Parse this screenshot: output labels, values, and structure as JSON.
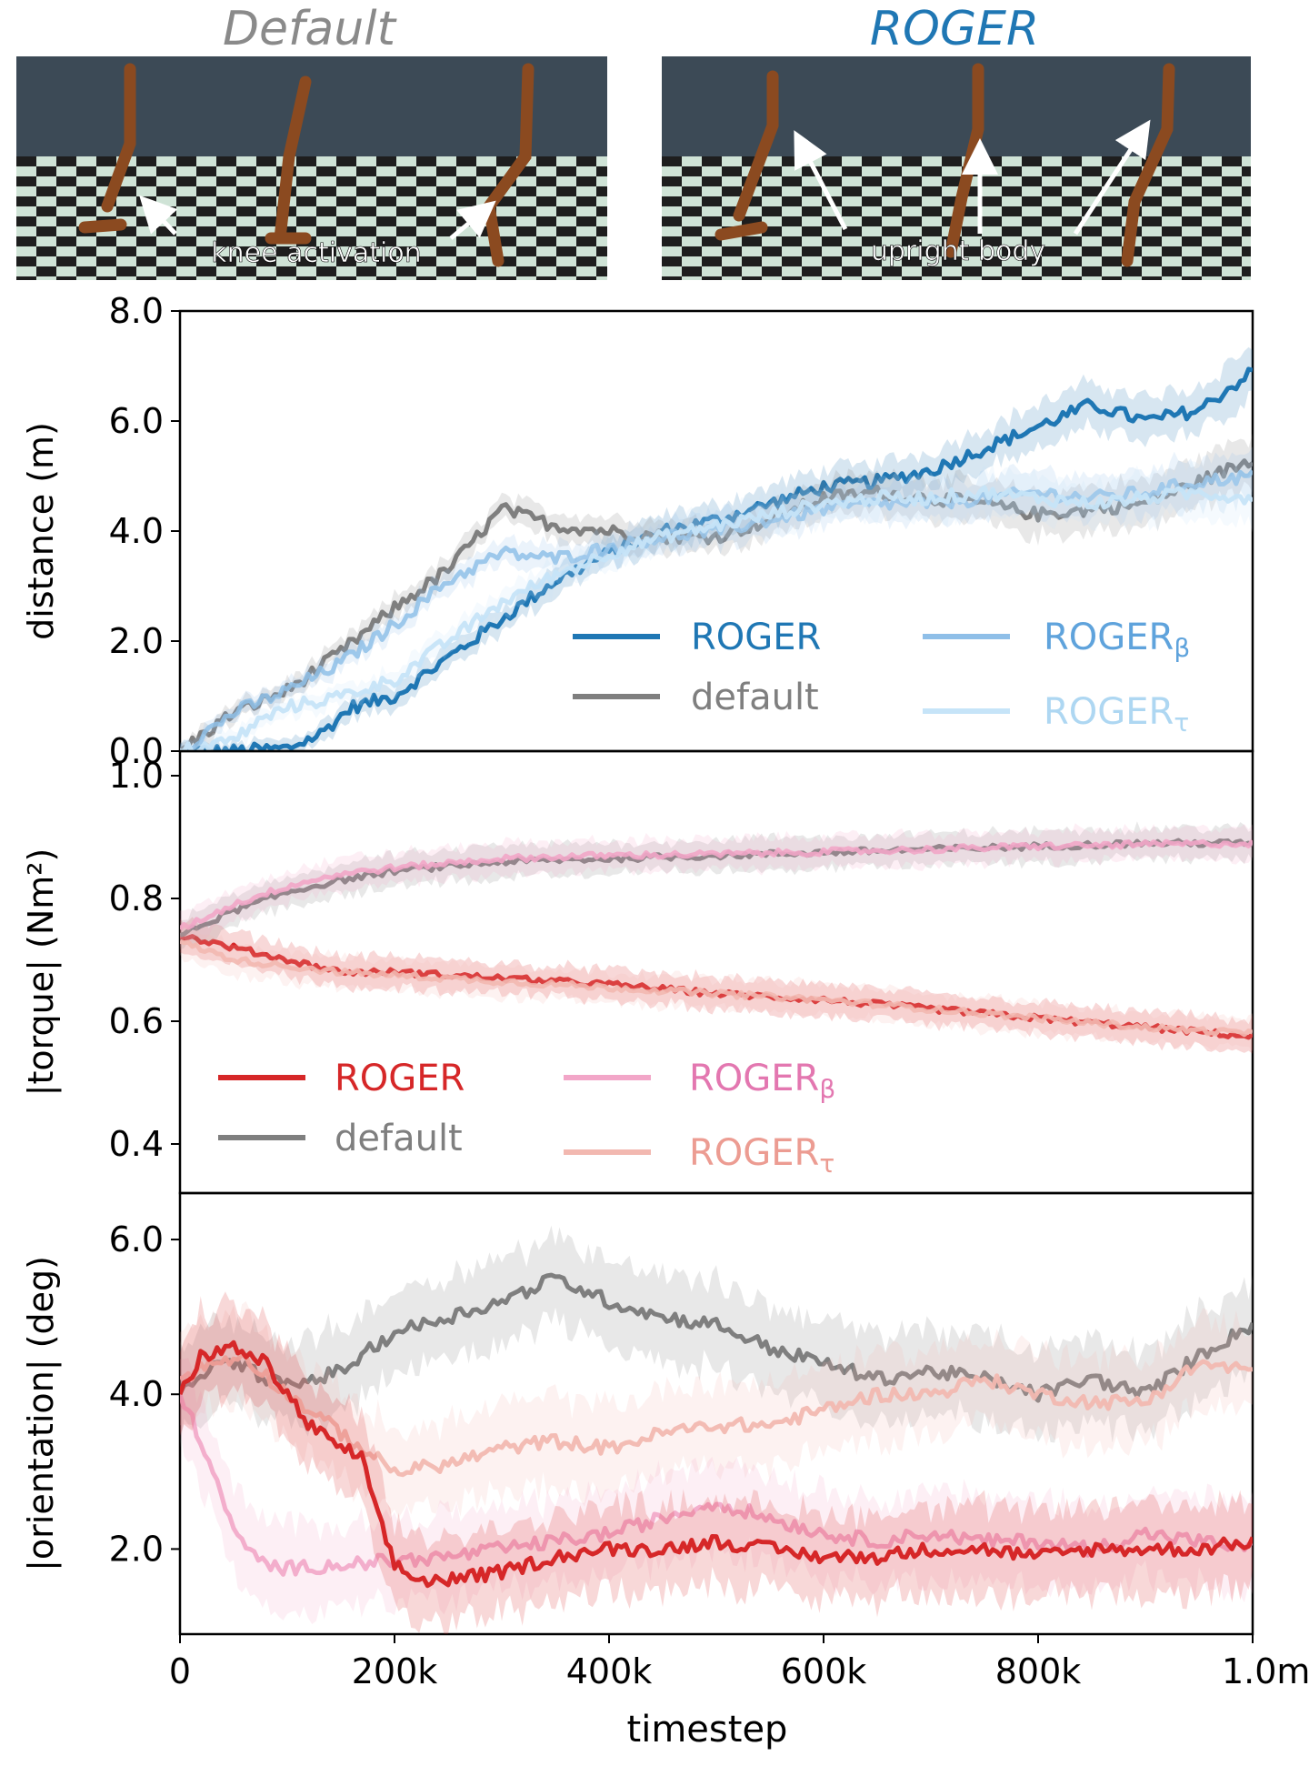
{
  "panels": {
    "default": {
      "title": "Default",
      "annotation": "knee activation"
    },
    "roger": {
      "title": "ROGER",
      "annotation": "upright body"
    }
  },
  "colors": {
    "roger_blue": "#1f77b4",
    "roger_beta_blue": "#8fbfe8",
    "roger_tau_blue": "#c6e4f8",
    "default_gray": "#7f7f7f",
    "roger_red": "#d62728",
    "roger_beta_pink": "#f2a6c8",
    "roger_tau_salmon": "#f2b8b0",
    "sky": "#3c4a56",
    "leg": "#8b4a20"
  },
  "chart_data": [
    {
      "type": "line",
      "id": "distance",
      "ylabel": "distance (m)",
      "ylim": [
        0.0,
        8.0
      ],
      "yticks": [
        "0.0",
        "2.0",
        "4.0",
        "6.0",
        "8.0"
      ],
      "xlim": [
        0,
        1000000
      ],
      "legend": {
        "placement": "lower-right",
        "columns": 2
      },
      "series": [
        {
          "name": "ROGER",
          "color": "#1f77b4",
          "opacity": 1.0,
          "x": [
            0,
            50000,
            100000,
            130000,
            160000,
            200000,
            250000,
            300000,
            350000,
            400000,
            450000,
            500000,
            550000,
            600000,
            650000,
            700000,
            750000,
            800000,
            850000,
            900000,
            950000,
            1000000
          ],
          "y": [
            0.0,
            0.0,
            0.05,
            0.3,
            0.8,
            1.0,
            1.7,
            2.4,
            3.1,
            3.6,
            4.0,
            4.2,
            4.5,
            4.8,
            4.9,
            5.1,
            5.5,
            5.9,
            6.3,
            6.0,
            6.2,
            6.9
          ]
        },
        {
          "name": "default",
          "color": "#7f7f7f",
          "opacity": 1.0,
          "x": [
            0,
            50000,
            100000,
            150000,
            200000,
            250000,
            300000,
            350000,
            400000,
            450000,
            500000,
            550000,
            600000,
            650000,
            700000,
            750000,
            800000,
            850000,
            900000,
            950000,
            1000000
          ],
          "y": [
            0.0,
            0.7,
            1.1,
            1.8,
            2.6,
            3.3,
            4.4,
            4.1,
            4.0,
            3.9,
            3.9,
            4.2,
            4.6,
            4.7,
            4.6,
            4.5,
            4.3,
            4.4,
            4.5,
            4.9,
            5.3
          ]
        },
        {
          "name": "ROGERβ",
          "color": "#8fbfe8",
          "opacity": 0.85,
          "x": [
            0,
            50000,
            100000,
            150000,
            200000,
            250000,
            300000,
            350000,
            400000,
            450000,
            500000,
            550000,
            600000,
            650000,
            700000,
            750000,
            800000,
            850000,
            900000,
            950000,
            1000000
          ],
          "y": [
            0.0,
            0.7,
            1.1,
            1.6,
            2.3,
            3.1,
            3.6,
            3.5,
            3.7,
            3.9,
            4.0,
            4.2,
            4.4,
            4.5,
            4.5,
            4.6,
            4.7,
            4.6,
            4.7,
            4.9,
            5.0
          ]
        },
        {
          "name": "ROGERτ",
          "color": "#c6e4f8",
          "opacity": 0.95,
          "x": [
            0,
            50000,
            70000,
            100000,
            150000,
            200000,
            250000,
            300000,
            350000,
            400000,
            450000,
            500000,
            550000,
            600000,
            650000,
            700000,
            750000,
            800000,
            850000,
            900000,
            950000,
            1000000
          ],
          "y": [
            0.0,
            0.2,
            0.5,
            0.8,
            1.0,
            1.3,
            2.0,
            2.7,
            3.2,
            3.6,
            3.9,
            4.1,
            4.3,
            4.5,
            4.6,
            4.6,
            4.7,
            4.6,
            4.5,
            4.6,
            4.7,
            4.6
          ]
        }
      ]
    },
    {
      "type": "line",
      "id": "torque",
      "ylabel": "|torque| (Nm²)",
      "ylim": [
        0.32,
        1.04
      ],
      "yticks": [
        "0.4",
        "0.6",
        "0.8",
        "1.0"
      ],
      "xlim": [
        0,
        1000000
      ],
      "legend": {
        "placement": "lower-left",
        "columns": 2
      },
      "series": [
        {
          "name": "ROGER",
          "color": "#d62728",
          "opacity": 1.0,
          "x": [
            0,
            50000,
            100000,
            150000,
            200000,
            300000,
            400000,
            500000,
            600000,
            700000,
            800000,
            900000,
            1000000
          ],
          "y": [
            0.74,
            0.72,
            0.7,
            0.68,
            0.68,
            0.67,
            0.66,
            0.645,
            0.635,
            0.62,
            0.605,
            0.59,
            0.575
          ]
        },
        {
          "name": "default",
          "color": "#7f7f7f",
          "opacity": 1.0,
          "x": [
            0,
            50000,
            100000,
            150000,
            200000,
            300000,
            400000,
            500000,
            600000,
            700000,
            800000,
            900000,
            1000000
          ],
          "y": [
            0.74,
            0.78,
            0.81,
            0.83,
            0.845,
            0.86,
            0.865,
            0.87,
            0.875,
            0.88,
            0.885,
            0.89,
            0.89
          ]
        },
        {
          "name": "ROGERβ",
          "color": "#f2a6c8",
          "opacity": 0.9,
          "x": [
            0,
            50000,
            100000,
            150000,
            200000,
            300000,
            400000,
            500000,
            600000,
            700000,
            800000,
            900000,
            1000000
          ],
          "y": [
            0.75,
            0.79,
            0.82,
            0.84,
            0.85,
            0.865,
            0.87,
            0.872,
            0.876,
            0.88,
            0.885,
            0.888,
            0.89
          ]
        },
        {
          "name": "ROGERτ",
          "color": "#f2b8b0",
          "opacity": 0.9,
          "x": [
            0,
            50000,
            100000,
            150000,
            200000,
            300000,
            400000,
            500000,
            600000,
            700000,
            800000,
            900000,
            1000000
          ],
          "y": [
            0.73,
            0.7,
            0.69,
            0.68,
            0.675,
            0.665,
            0.655,
            0.645,
            0.635,
            0.62,
            0.605,
            0.59,
            0.58
          ]
        }
      ]
    },
    {
      "type": "line",
      "id": "orientation",
      "ylabel": "|orientation| (deg)",
      "ylim": [
        0.9,
        6.6
      ],
      "yticks": [
        "2.0",
        "4.0",
        "6.0"
      ],
      "xlim": [
        0,
        1000000
      ],
      "xticks": [
        "0",
        "200k",
        "400k",
        "600k",
        "800k",
        "1.0m"
      ],
      "xlabel": "timestep",
      "series": [
        {
          "name": "default",
          "color": "#7f7f7f",
          "opacity": 1.0,
          "x": [
            0,
            20000,
            50000,
            100000,
            150000,
            200000,
            250000,
            300000,
            350000,
            400000,
            450000,
            500000,
            550000,
            600000,
            650000,
            700000,
            750000,
            800000,
            850000,
            900000,
            950000,
            1000000
          ],
          "y": [
            4.0,
            4.3,
            4.4,
            4.1,
            4.3,
            4.8,
            5.0,
            5.2,
            5.5,
            5.2,
            5.0,
            4.9,
            4.6,
            4.4,
            4.2,
            4.3,
            4.2,
            4.0,
            4.2,
            4.0,
            4.5,
            4.9
          ]
        },
        {
          "name": "ROGERτ",
          "color": "#f2b8b0",
          "opacity": 0.95,
          "x": [
            0,
            30000,
            60000,
            100000,
            150000,
            200000,
            250000,
            300000,
            350000,
            400000,
            450000,
            500000,
            550000,
            600000,
            650000,
            700000,
            750000,
            800000,
            850000,
            900000,
            950000,
            1000000
          ],
          "y": [
            4.2,
            4.4,
            4.5,
            4.0,
            3.5,
            3.0,
            3.1,
            3.3,
            3.4,
            3.3,
            3.5,
            3.6,
            3.6,
            3.8,
            4.0,
            4.0,
            4.2,
            4.0,
            3.9,
            3.9,
            4.4,
            4.3
          ]
        },
        {
          "name": "ROGERβ",
          "color": "#f2a6c8",
          "opacity": 0.9,
          "x": [
            0,
            20000,
            40000,
            60000,
            80000,
            100000,
            150000,
            200000,
            250000,
            300000,
            350000,
            400000,
            450000,
            500000,
            550000,
            600000,
            650000,
            700000,
            750000,
            800000,
            850000,
            900000,
            950000,
            1000000
          ],
          "y": [
            4.0,
            3.4,
            2.6,
            2.0,
            1.8,
            1.75,
            1.8,
            1.85,
            1.9,
            2.0,
            2.1,
            2.2,
            2.4,
            2.6,
            2.4,
            2.2,
            2.1,
            2.2,
            2.1,
            2.1,
            2.0,
            2.2,
            2.1,
            2.0
          ]
        },
        {
          "name": "ROGER",
          "color": "#d62728",
          "opacity": 1.0,
          "x": [
            0,
            20000,
            50000,
            80000,
            100000,
            120000,
            150000,
            170000,
            180000,
            200000,
            220000,
            250000,
            300000,
            350000,
            400000,
            450000,
            500000,
            550000,
            600000,
            650000,
            700000,
            750000,
            800000,
            850000,
            900000,
            950000,
            1000000
          ],
          "y": [
            4.0,
            4.5,
            4.6,
            4.4,
            4.0,
            3.6,
            3.3,
            3.2,
            2.6,
            1.8,
            1.6,
            1.6,
            1.7,
            1.9,
            2.0,
            2.0,
            2.1,
            2.0,
            1.9,
            1.9,
            2.0,
            2.0,
            1.9,
            2.0,
            2.0,
            2.0,
            2.1
          ]
        }
      ]
    }
  ]
}
